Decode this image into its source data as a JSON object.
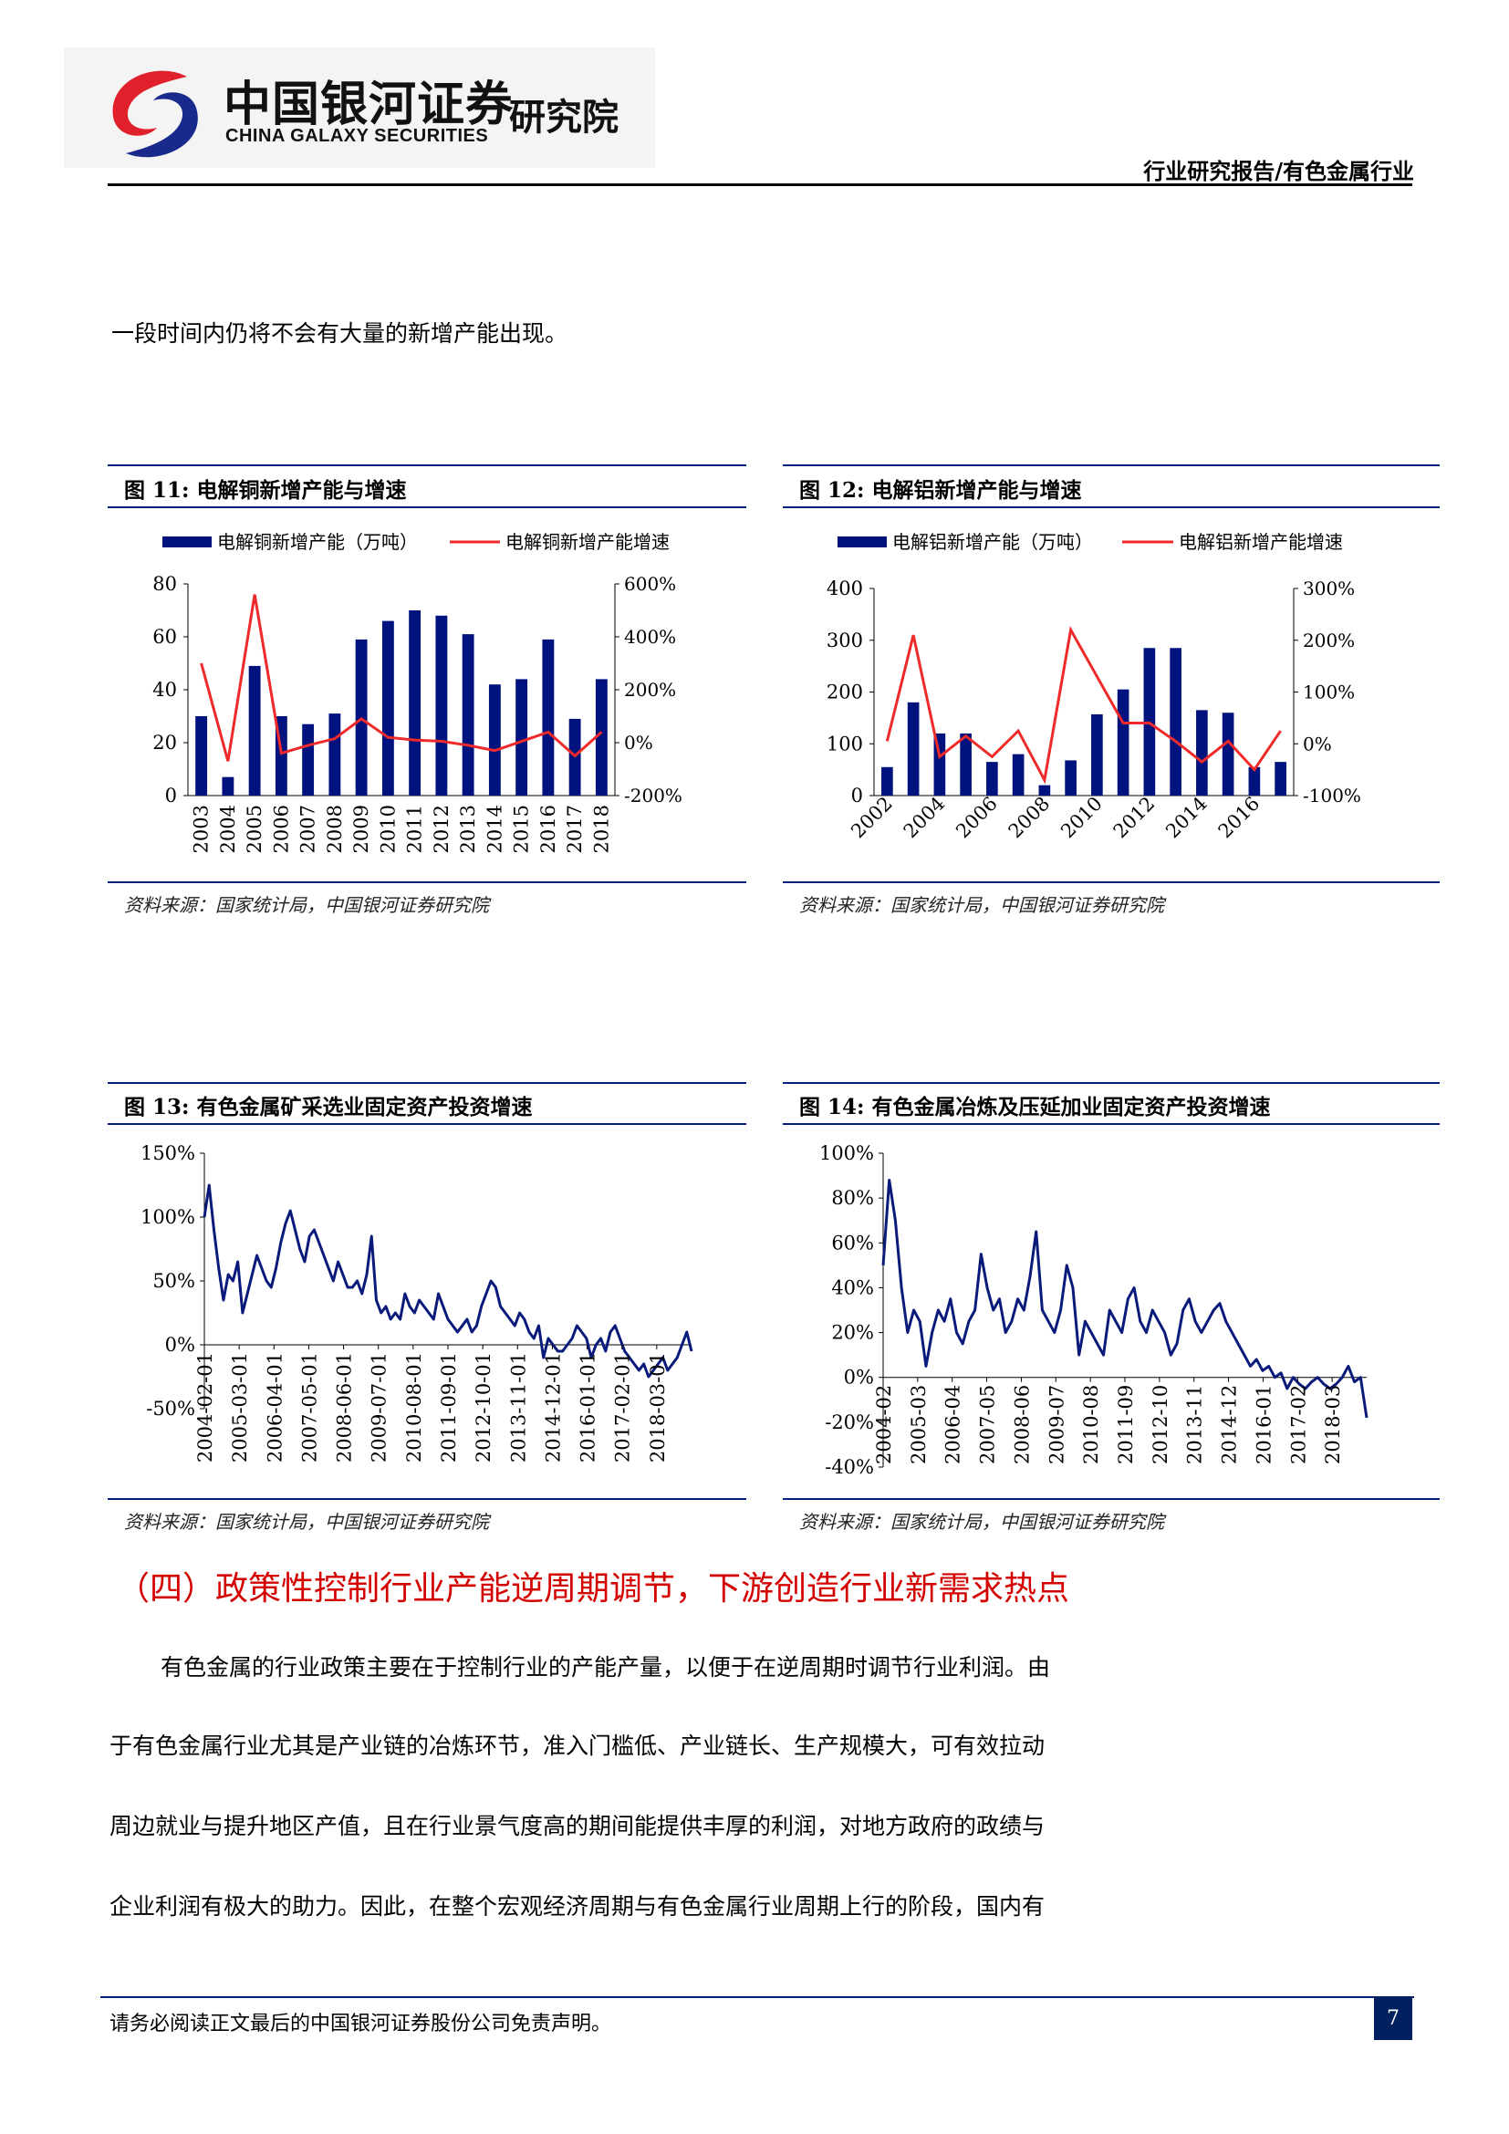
{
  "header": {
    "logo_cn": "中国银河证券",
    "logo_en": "CHINA GALAXY SECURITIES",
    "logo_institute": "研究院",
    "report_type": "行业研究报告/有色金属行业"
  },
  "intro_line": "一段时间内仍将不会有大量的新增产能出现。",
  "figures": [
    {
      "title": "图 11:  电解铜新增产能与增速",
      "source": "资料来源：国家统计局，中国银河证券研究院",
      "legend_bar": "电解铜新增产能（万吨）",
      "legend_line": "电解铜新增产能增速",
      "left_ticks": [
        "80",
        "60",
        "40",
        "20",
        "0"
      ],
      "right_ticks": [
        "600%",
        "400%",
        "200%",
        "0%",
        "-200%"
      ]
    },
    {
      "title": "图 12:  电解铝新增产能与增速",
      "source": "资料来源：国家统计局，中国银河证券研究院",
      "legend_bar": "电解铝新增产能（万吨）",
      "legend_line": "电解铝新增产能增速",
      "left_ticks": [
        "400",
        "300",
        "200",
        "100",
        "0"
      ],
      "right_ticks": [
        "300%",
        "200%",
        "100%",
        "0%",
        "-100%"
      ]
    },
    {
      "title": "图 13:  有色金属矿采选业固定资产投资增速",
      "source": "资料来源：国家统计局，中国银河证券研究院",
      "y_ticks": [
        "150%",
        "100%",
        "50%",
        "0%",
        "-50%"
      ]
    },
    {
      "title": "图 14:  有色金属冶炼及压延加业固定资产投资增速",
      "source": "资料来源：国家统计局，中国银河证券研究院",
      "y_ticks": [
        "100%",
        "80%",
        "60%",
        "40%",
        "20%",
        "0%",
        "-20%",
        "-40%"
      ]
    }
  ],
  "chart_data": [
    {
      "type": "bar",
      "categories": [
        "2003",
        "2004",
        "2005",
        "2006",
        "2007",
        "2008",
        "2009",
        "2010",
        "2011",
        "2012",
        "2013",
        "2014",
        "2015",
        "2016",
        "2017",
        "2018"
      ],
      "series": [
        {
          "name": "电解铜新增产能（万吨）",
          "type": "bar",
          "axis": "left",
          "values": [
            30,
            7,
            49,
            30,
            27,
            31,
            59,
            66,
            70,
            68,
            61,
            42,
            44,
            59,
            29,
            44
          ]
        },
        {
          "name": "电解铜新增产能增速",
          "type": "line",
          "axis": "right",
          "values": [
            300,
            -70,
            560,
            -40,
            -10,
            15,
            90,
            20,
            10,
            5,
            -10,
            -30,
            5,
            40,
            -50,
            40
          ]
        }
      ],
      "ylim_left": [
        0,
        80
      ],
      "ylim_right": [
        -200,
        600
      ],
      "color_bar": "#00127e",
      "color_line": "#ee2a2a"
    },
    {
      "type": "bar",
      "categories": [
        "2002",
        "2003",
        "2004",
        "2005",
        "2006",
        "2007",
        "2008",
        "2009",
        "2010",
        "2011",
        "2012",
        "2013",
        "2014",
        "2015",
        "2016",
        "2017"
      ],
      "x_tick_labels": [
        "2002",
        "",
        "2004",
        "",
        "2006",
        "",
        "2008",
        "",
        "2010",
        "",
        "2012",
        "",
        "2014",
        "",
        "2016",
        ""
      ],
      "series": [
        {
          "name": "电解铝新增产能（万吨）",
          "type": "bar",
          "axis": "left",
          "values": [
            55,
            180,
            120,
            120,
            65,
            80,
            20,
            68,
            157,
            205,
            285,
            285,
            165,
            160,
            55,
            65
          ]
        },
        {
          "name": "电解铝新增产能增速",
          "type": "line",
          "axis": "right",
          "values": [
            5,
            210,
            -25,
            15,
            -25,
            25,
            -70,
            220,
            130,
            40,
            40,
            5,
            -35,
            5,
            -50,
            25
          ]
        }
      ],
      "ylim_left": [
        0,
        400
      ],
      "ylim_right": [
        -100,
        300
      ],
      "color_bar": "#00127e",
      "color_line": "#ee2a2a"
    },
    {
      "type": "line",
      "x_tick_labels": [
        "2004-02-01",
        "2005-03-01",
        "2006-04-01",
        "2007-05-01",
        "2008-06-01",
        "2009-07-01",
        "2010-08-01",
        "2011-09-01",
        "2012-10-01",
        "2013-11-01",
        "2014-12-01",
        "2016-01-01",
        "2017-02-01",
        "2018-03-01"
      ],
      "x_range": [
        "2004-02",
        "2018-09"
      ],
      "series": [
        {
          "values": [
            100,
            125,
            90,
            60,
            35,
            55,
            50,
            65,
            25,
            40,
            55,
            70,
            60,
            50,
            45,
            60,
            80,
            95,
            105,
            90,
            75,
            65,
            85,
            90,
            80,
            70,
            60,
            50,
            65,
            55,
            45,
            45,
            50,
            40,
            55,
            85,
            35,
            25,
            30,
            20,
            25,
            20,
            40,
            30,
            25,
            35,
            30,
            25,
            20,
            40,
            30,
            20,
            15,
            10,
            15,
            20,
            10,
            15,
            30,
            40,
            50,
            45,
            30,
            25,
            20,
            15,
            25,
            20,
            10,
            5,
            15,
            -10,
            5,
            0,
            -5,
            -5,
            0,
            5,
            15,
            10,
            5,
            -10,
            0,
            5,
            -5,
            10,
            15,
            5,
            -5,
            -10,
            -15,
            -20,
            -15,
            -25,
            -20,
            -15,
            -10,
            -20,
            -15,
            -10,
            0,
            10,
            -5
          ]
        }
      ],
      "ylim": [
        -50,
        150
      ],
      "color": "#0a1a7a"
    },
    {
      "type": "line",
      "x_tick_labels": [
        "2004-02",
        "2005-03",
        "2006-04",
        "2007-05",
        "2008-06",
        "2009-07",
        "2010-08",
        "2011-09",
        "2012-10",
        "2013-11",
        "2014-12",
        "2016-01",
        "2017-02",
        "2018-03"
      ],
      "x_range": [
        "2004-02",
        "2018-10"
      ],
      "series": [
        {
          "values": [
            50,
            88,
            70,
            40,
            20,
            30,
            25,
            5,
            20,
            30,
            25,
            35,
            20,
            15,
            25,
            30,
            55,
            40,
            30,
            35,
            20,
            25,
            35,
            30,
            45,
            65,
            30,
            25,
            20,
            30,
            50,
            40,
            10,
            25,
            20,
            15,
            10,
            30,
            25,
            20,
            35,
            40,
            25,
            20,
            30,
            25,
            20,
            10,
            15,
            30,
            35,
            25,
            20,
            25,
            30,
            33,
            25,
            20,
            15,
            10,
            5,
            8,
            3,
            5,
            0,
            2,
            -5,
            0,
            -3,
            -5,
            -2,
            0,
            -3,
            -5,
            -3,
            0,
            5,
            -2,
            0,
            -18
          ]
        }
      ],
      "ylim": [
        -40,
        100
      ],
      "color": "#0a1a7a"
    }
  ],
  "section_heading": "（四）政策性控制行业产能逆周期调节，下游创造行业新需求热点",
  "paragraph_lines": [
    "有色金属的行业政策主要在于控制行业的产能产量，以便于在逆周期时调节行业利润。由",
    "于有色金属行业尤其是产业链的冶炼环节，准入门槛低、产业链长、生产规模大，可有效拉动",
    "周边就业与提升地区产值，且在行业景气度高的期间能提供丰厚的利润，对地方政府的政绩与",
    "企业利润有极大的助力。因此，在整个宏观经济周期与有色金属行业周期上行的阶段，国内有"
  ],
  "footer": {
    "disclaimer": "请务必阅读正文最后的中国银河证券股份公司免责声明。",
    "page_number": "7"
  }
}
